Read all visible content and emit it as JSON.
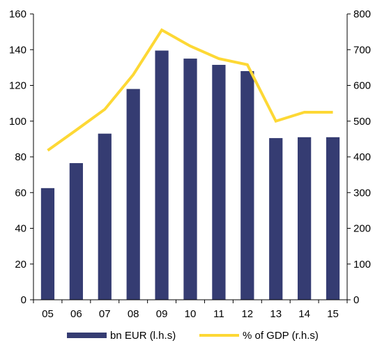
{
  "chart_data": {
    "type": "bar+line",
    "categories": [
      "05",
      "06",
      "07",
      "08",
      "09",
      "10",
      "11",
      "12",
      "13",
      "14",
      "15"
    ],
    "series": [
      {
        "name": "bn EUR (l.h.s)",
        "type": "bar",
        "axis": "left",
        "color": "#353c72",
        "values": [
          62.5,
          76.5,
          93,
          118,
          139.5,
          135,
          131.5,
          128,
          90.5,
          91,
          91
        ]
      },
      {
        "name": "% of GDP (r.h.s)",
        "type": "line",
        "axis": "right",
        "color": "#fdd835",
        "values": [
          418,
          475,
          533,
          630,
          755,
          710,
          675,
          658,
          500,
          525,
          525
        ]
      }
    ],
    "y_left": {
      "min": 0,
      "max": 160,
      "ticks": [
        0,
        20,
        40,
        60,
        80,
        100,
        120,
        140,
        160
      ]
    },
    "y_right": {
      "min": 0,
      "max": 800,
      "ticks": [
        0,
        100,
        200,
        300,
        400,
        500,
        600,
        700,
        800
      ]
    },
    "grid": false,
    "legend_position": "bottom-center"
  }
}
